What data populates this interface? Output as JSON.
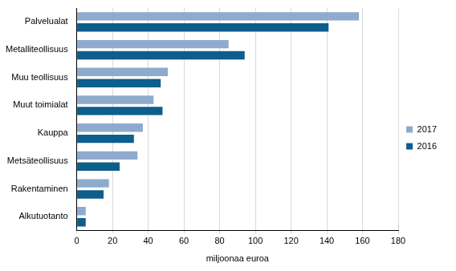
{
  "chart_data": {
    "type": "bar",
    "orientation": "horizontal",
    "categories": [
      "Palvelualat",
      "Metalliteollisuus",
      "Muu teollisuus",
      "Muut toimialat",
      "Kauppa",
      "Metsäteollisuus",
      "Rakentaminen",
      "Alkutuotanto"
    ],
    "series": [
      {
        "name": "2017",
        "color": "#8eaacc",
        "values": [
          158,
          85,
          51,
          43,
          37,
          34,
          18,
          5
        ]
      },
      {
        "name": "2016",
        "color": "#0d5e8c",
        "values": [
          141,
          94,
          47,
          48,
          32,
          24,
          15,
          5
        ]
      }
    ],
    "xlabel": "miljoonaa euroa",
    "xlim": [
      0,
      180
    ],
    "xticks": [
      0,
      20,
      40,
      60,
      80,
      100,
      120,
      140,
      160,
      180
    ],
    "grid": true,
    "legend": "right"
  }
}
